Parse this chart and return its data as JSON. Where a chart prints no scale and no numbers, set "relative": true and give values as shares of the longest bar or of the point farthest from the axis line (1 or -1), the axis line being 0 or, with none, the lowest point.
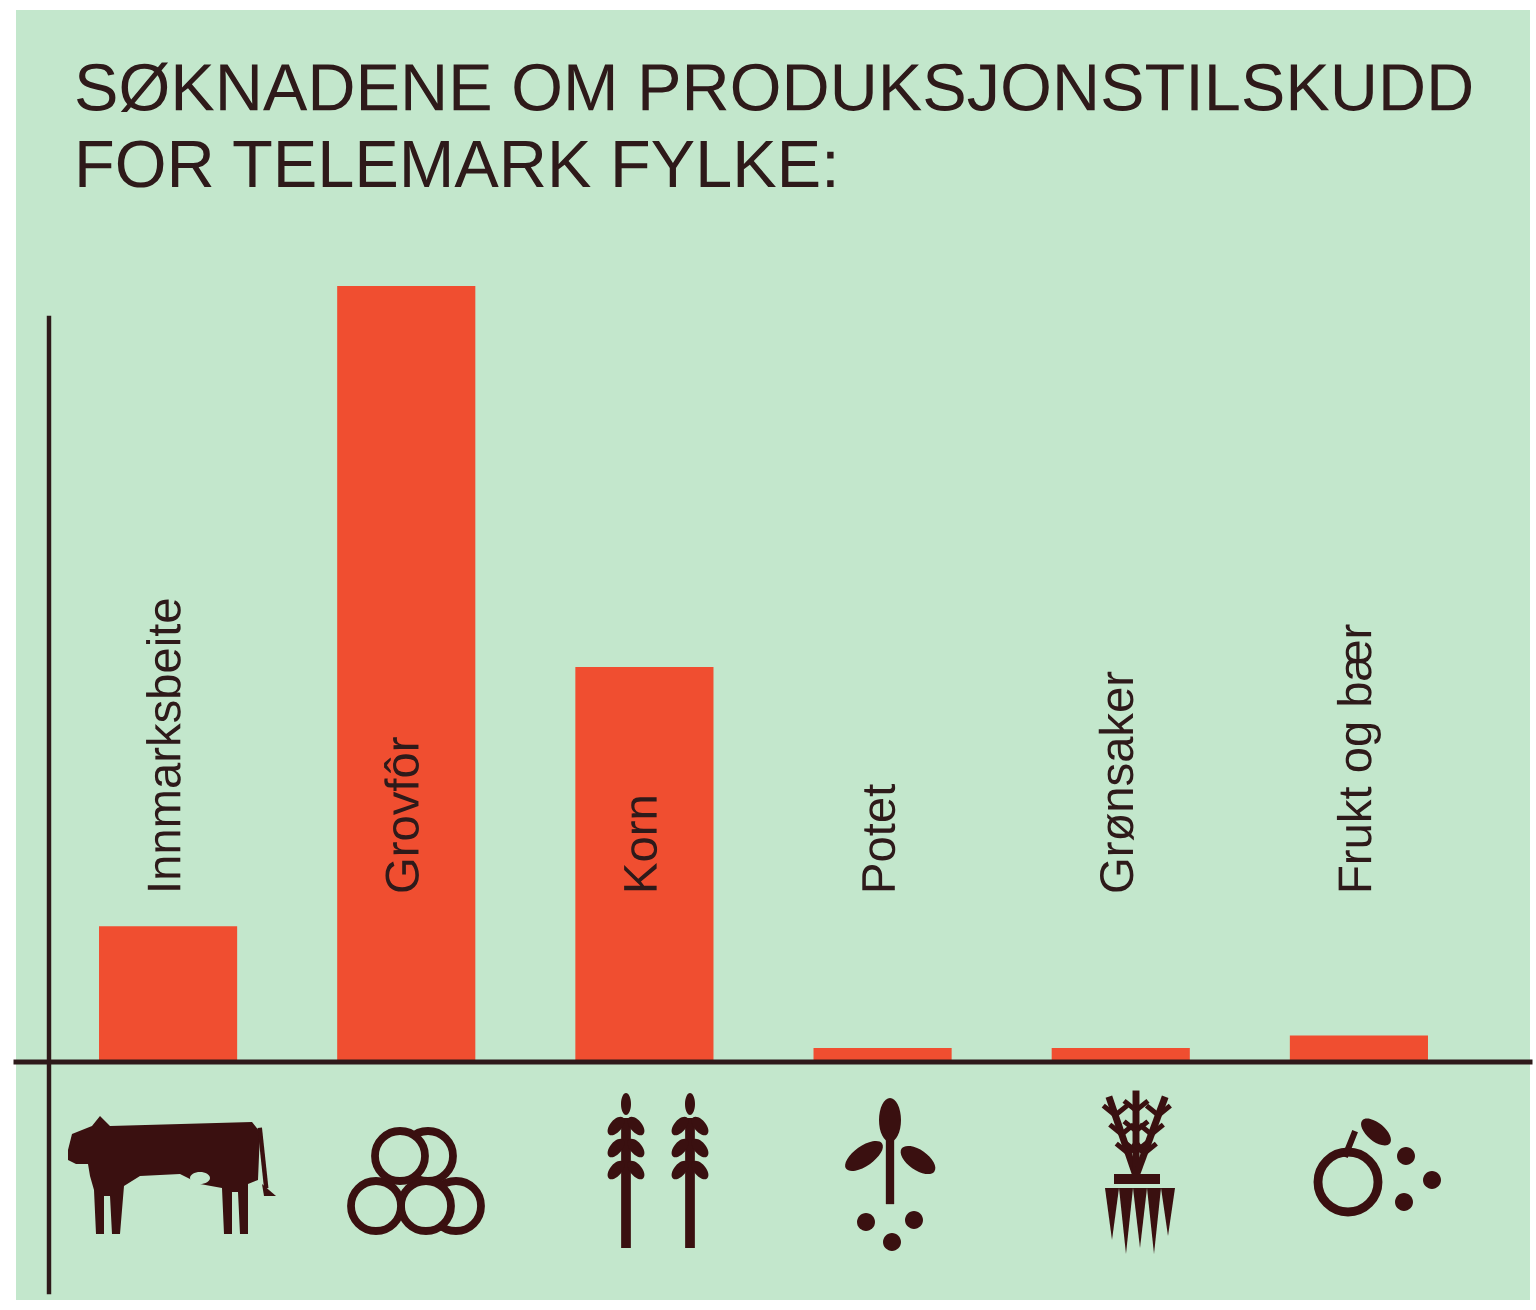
{
  "chart_data": {
    "type": "bar",
    "title": "SØKNADENE OM PRODUKSJONSTILSKUDD\nFOR TELEMARK FYLKE:",
    "categories": [
      "Innmarksbeite",
      "Grovfôr",
      "Korn",
      "Potet",
      "Grønsaker",
      "Frukt og bær"
    ],
    "values": [
      0.175,
      1,
      0.509,
      0.018,
      0.018,
      0.034
    ],
    "color": "#f04e30",
    "relative": true
  }
}
